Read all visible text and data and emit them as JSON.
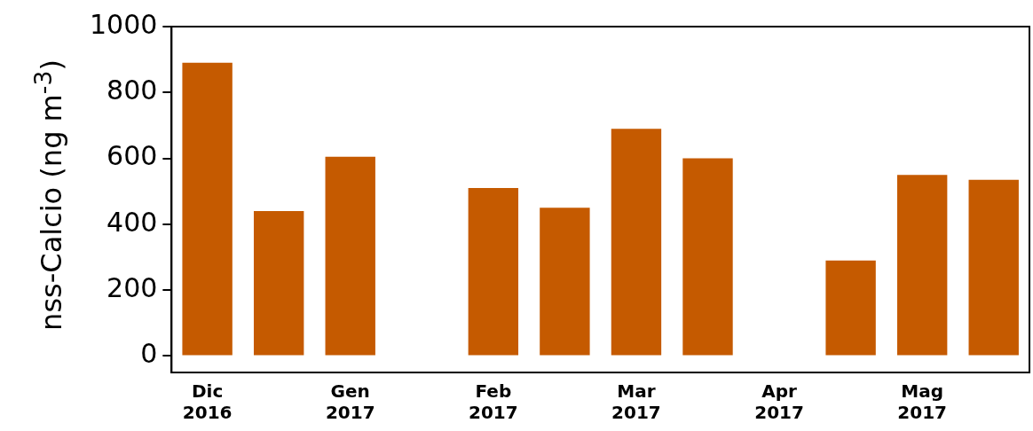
{
  "chart_data": {
    "type": "bar",
    "ylabel": "nss-Calcio (ng m$^{-3}$)",
    "categories": [
      "Dic\n2016",
      null,
      "Gen\n2017",
      null,
      "Feb\n2017",
      null,
      "Mar\n2017",
      null,
      "Apr\n2017",
      null,
      "Mag\n2017",
      null
    ],
    "values": [
      890,
      440,
      605,
      null,
      510,
      450,
      690,
      600,
      null,
      290,
      550,
      535
    ],
    "color": "#c55a00",
    "ylim": [
      -50,
      1000
    ],
    "yticks": [
      0,
      200,
      400,
      600,
      800,
      1000
    ],
    "grid": false
  }
}
